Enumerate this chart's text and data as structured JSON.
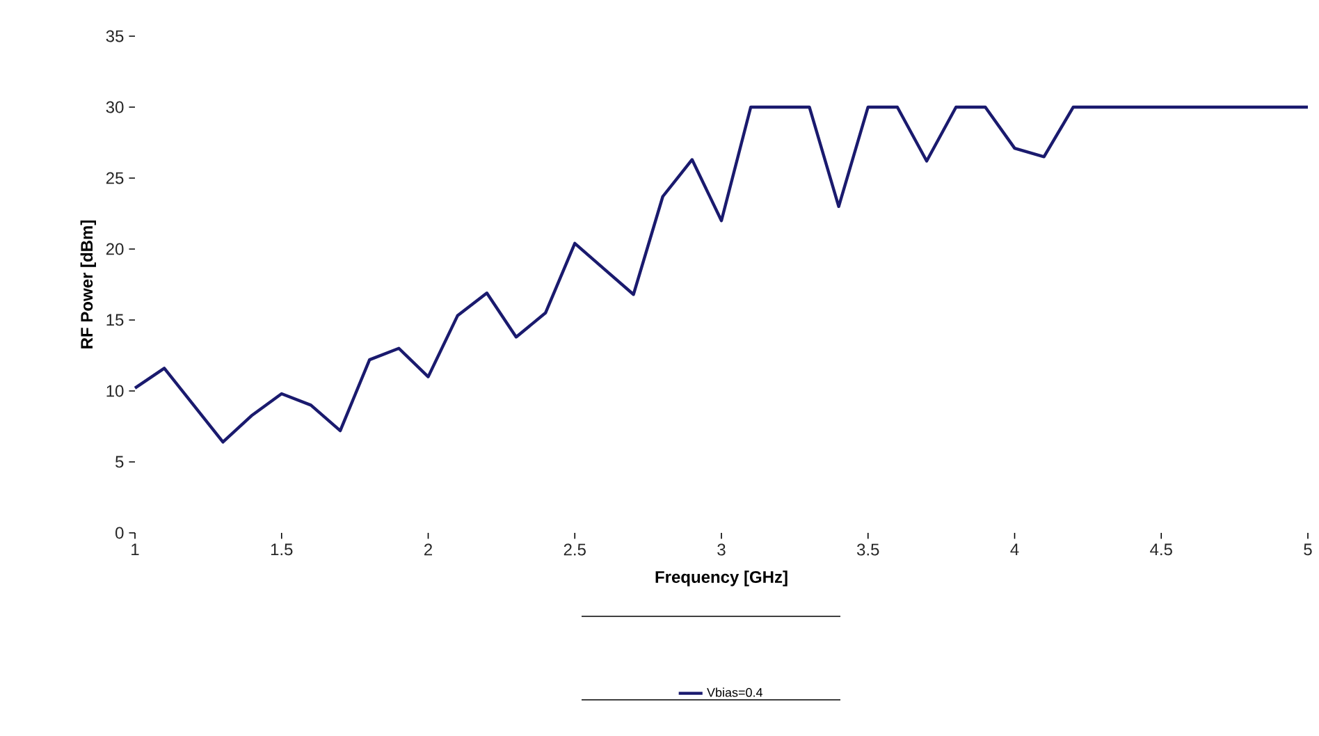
{
  "chart_data": {
    "type": "line",
    "xlabel": "Frequency [GHz]",
    "ylabel": "RF Power [dBm]",
    "xlim": [
      1,
      5
    ],
    "xticks": [
      1,
      1.5,
      2,
      2.5,
      3,
      3.5,
      4,
      4.5,
      5
    ],
    "ylim": [
      0,
      35
    ],
    "yticks": [
      0,
      5,
      10,
      15,
      20,
      25,
      30,
      35
    ],
    "grid": false,
    "legend": "bottom",
    "marker": "none",
    "line_style": "solid",
    "series": [
      {
        "name": "Vbias=0.4",
        "color": "#1a1a6e",
        "x": [
          1.0,
          1.1,
          1.2,
          1.3,
          1.4,
          1.5,
          1.6,
          1.7,
          1.8,
          1.9,
          2.0,
          2.1,
          2.2,
          2.3,
          2.4,
          2.5,
          2.6,
          2.7,
          2.8,
          2.9,
          3.0,
          3.1,
          3.2,
          3.3,
          3.4,
          3.5,
          3.6,
          3.7,
          3.8,
          3.9,
          4.0,
          4.1,
          4.2,
          5.0
        ],
        "values": [
          10.2,
          11.6,
          9,
          6.4,
          8.3,
          9.8,
          9,
          7.2,
          12.2,
          13,
          11,
          15.3,
          16.9,
          13.8,
          15.5,
          20.4,
          18.6,
          16.8,
          23.7,
          26.3,
          22,
          30,
          30,
          30,
          23,
          30,
          30,
          26.2,
          30,
          30,
          27.1,
          26.5,
          30,
          30
        ]
      }
    ]
  }
}
